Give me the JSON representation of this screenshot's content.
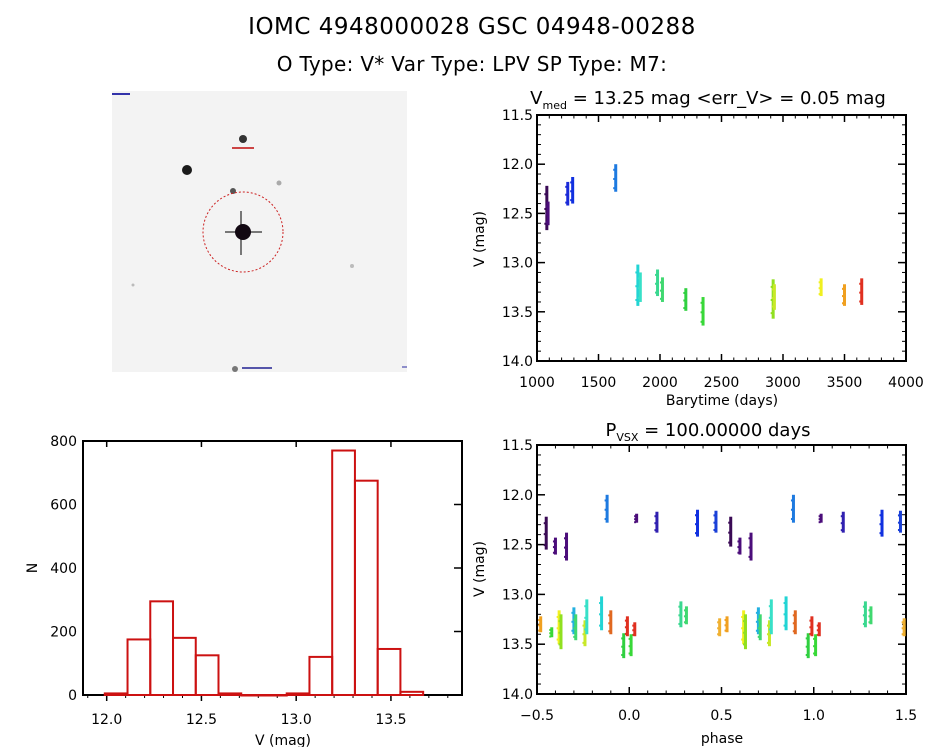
{
  "header": {
    "title": "IOMC 4948000028    GSC 04948-00288",
    "subtitle": "O Type: V*   Var Type: LPV   SP Type: M7:"
  },
  "finder": {
    "description": "DSS finder chart with target circled",
    "target_label": "target",
    "colors": {
      "circle": "#cc2222",
      "stars": "#111111",
      "background": "#f3f3f3"
    }
  },
  "chart_data": [
    {
      "id": "light-curve",
      "type": "scatter",
      "title_main": "V",
      "title_sub": "med",
      "title_rest": " = 13.25 mag <err_V> = 0.05 mag",
      "xlabel": "Barytime (days)",
      "ylabel": "V (mag)",
      "xlim": [
        1000,
        4000
      ],
      "ylim": [
        14.0,
        11.5
      ],
      "y_inverted": true,
      "xticks": [
        1000,
        1500,
        2000,
        2500,
        3000,
        3500,
        4000
      ],
      "yticks": [
        11.5,
        12.0,
        12.5,
        13.0,
        13.5,
        14.0
      ],
      "ytick_labels": [
        "11.5",
        "12.0",
        "12.5",
        "13.0",
        "13.5",
        "14.0"
      ],
      "groups": [
        {
          "x": 1080,
          "vmin": 12.22,
          "vmax": 12.67,
          "color": "#3a0a55"
        },
        {
          "x": 1090,
          "vmin": 12.38,
          "vmax": 12.62,
          "color": "#4b0d7a"
        },
        {
          "x": 1250,
          "vmin": 12.18,
          "vmax": 12.42,
          "color": "#1a2ad8"
        },
        {
          "x": 1290,
          "vmin": 12.13,
          "vmax": 12.4,
          "color": "#1030e0"
        },
        {
          "x": 1640,
          "vmin": 12.0,
          "vmax": 12.28,
          "color": "#1e7ae0"
        },
        {
          "x": 1820,
          "vmin": 13.02,
          "vmax": 13.44,
          "color": "#22d4d4"
        },
        {
          "x": 1840,
          "vmin": 13.1,
          "vmax": 13.4,
          "color": "#38e0c8"
        },
        {
          "x": 1980,
          "vmin": 13.07,
          "vmax": 13.34,
          "color": "#3ad890"
        },
        {
          "x": 2020,
          "vmin": 13.15,
          "vmax": 13.4,
          "color": "#40d870"
        },
        {
          "x": 2210,
          "vmin": 13.26,
          "vmax": 13.49,
          "color": "#30d040"
        },
        {
          "x": 2350,
          "vmin": 13.35,
          "vmax": 13.64,
          "color": "#38d838"
        },
        {
          "x": 2920,
          "vmin": 13.17,
          "vmax": 13.57,
          "color": "#90e020"
        },
        {
          "x": 2930,
          "vmin": 13.22,
          "vmax": 13.48,
          "color": "#c8e828"
        },
        {
          "x": 3310,
          "vmin": 13.16,
          "vmax": 13.34,
          "color": "#f0f020"
        },
        {
          "x": 3500,
          "vmin": 13.22,
          "vmax": 13.44,
          "color": "#f0a020"
        },
        {
          "x": 3640,
          "vmin": 13.16,
          "vmax": 13.43,
          "color": "#e03020"
        }
      ]
    },
    {
      "id": "histogram",
      "type": "bar",
      "title": "",
      "xlabel": "V (mag)",
      "ylabel": "N",
      "xlim": [
        11.875,
        13.875
      ],
      "ylim": [
        0,
        800
      ],
      "xticks": [
        12.0,
        12.5,
        13.0,
        13.5
      ],
      "xtick_labels": [
        "12.0",
        "12.5",
        "13.0",
        "13.5"
      ],
      "yticks": [
        0,
        200,
        400,
        600,
        800
      ],
      "ytick_labels": [
        "0",
        "200",
        "400",
        "600",
        "800"
      ],
      "bin_edges": [
        11.99,
        12.11,
        12.23,
        12.35,
        12.47,
        12.59,
        12.71,
        12.83,
        12.95,
        13.07,
        13.19,
        13.31,
        13.43,
        13.55,
        13.67
      ],
      "values": [
        5,
        175,
        295,
        180,
        125,
        5,
        0,
        0,
        5,
        120,
        770,
        675,
        145,
        10
      ],
      "bar_color": "#cc1111"
    },
    {
      "id": "phase-curve",
      "type": "scatter",
      "title_main": "P",
      "title_sub": "VSX",
      "title_rest": " = 100.00000 days",
      "xlabel": "phase",
      "ylabel": "V (mag)",
      "xlim": [
        -0.5,
        1.5
      ],
      "ylim": [
        14.0,
        11.5
      ],
      "y_inverted": true,
      "xticks": [
        -0.5,
        0.0,
        0.5,
        1.0,
        1.5
      ],
      "xtick_labels": [
        "−0.5",
        "0.0",
        "0.5",
        "1.0",
        "1.5"
      ],
      "yticks": [
        11.5,
        12.0,
        12.5,
        13.0,
        13.5,
        14.0
      ],
      "ytick_labels": [
        "11.5",
        "12.0",
        "12.5",
        "13.0",
        "13.5",
        "14.0"
      ],
      "groups": [
        {
          "x": -0.45,
          "vmin": 12.22,
          "vmax": 12.55,
          "color": "#3a0a55"
        },
        {
          "x": -0.4,
          "vmin": 12.43,
          "vmax": 12.6,
          "color": "#4b0d7a"
        },
        {
          "x": -0.34,
          "vmin": 12.38,
          "vmax": 12.66,
          "color": "#4b0d7a"
        },
        {
          "x": -0.12,
          "vmin": 12.0,
          "vmax": 12.28,
          "color": "#1e7ae0"
        },
        {
          "x": 0.04,
          "vmin": 12.19,
          "vmax": 12.28,
          "color": "#4b0d7a"
        },
        {
          "x": 0.15,
          "vmin": 12.17,
          "vmax": 12.38,
          "color": "#3020b0"
        },
        {
          "x": 0.37,
          "vmin": 12.15,
          "vmax": 12.42,
          "color": "#1030e0"
        },
        {
          "x": 0.47,
          "vmin": 12.16,
          "vmax": 12.38,
          "color": "#1a40d8"
        },
        {
          "x": 0.55,
          "vmin": 12.22,
          "vmax": 12.52,
          "color": "#3a0a55"
        },
        {
          "x": 0.6,
          "vmin": 12.43,
          "vmax": 12.6,
          "color": "#4b0d7a"
        },
        {
          "x": 0.66,
          "vmin": 12.38,
          "vmax": 12.66,
          "color": "#4b0d7a"
        },
        {
          "x": 0.89,
          "vmin": 12.0,
          "vmax": 12.28,
          "color": "#1e7ae0"
        },
        {
          "x": 1.04,
          "vmin": 12.19,
          "vmax": 12.28,
          "color": "#4b0d7a"
        },
        {
          "x": 1.16,
          "vmin": 12.17,
          "vmax": 12.38,
          "color": "#3020b0"
        },
        {
          "x": 1.37,
          "vmin": 12.15,
          "vmax": 12.42,
          "color": "#1030e0"
        },
        {
          "x": 1.47,
          "vmin": 12.16,
          "vmax": 12.38,
          "color": "#1a40d8"
        },
        {
          "x": -0.48,
          "vmin": 13.22,
          "vmax": 13.38,
          "color": "#f0a020"
        },
        {
          "x": -0.42,
          "vmin": 13.33,
          "vmax": 13.43,
          "color": "#38d838"
        },
        {
          "x": -0.38,
          "vmin": 13.16,
          "vmax": 13.5,
          "color": "#f0f020"
        },
        {
          "x": -0.37,
          "vmin": 13.2,
          "vmax": 13.55,
          "color": "#90e020"
        },
        {
          "x": -0.3,
          "vmin": 13.13,
          "vmax": 13.4,
          "color": "#22b0e0"
        },
        {
          "x": -0.29,
          "vmin": 13.2,
          "vmax": 13.46,
          "color": "#40d870"
        },
        {
          "x": -0.24,
          "vmin": 13.26,
          "vmax": 13.52,
          "color": "#c8e828"
        },
        {
          "x": -0.23,
          "vmin": 13.05,
          "vmax": 13.4,
          "color": "#38e0c8"
        },
        {
          "x": -0.15,
          "vmin": 13.02,
          "vmax": 13.36,
          "color": "#22d4d4"
        },
        {
          "x": -0.1,
          "vmin": 13.16,
          "vmax": 13.4,
          "color": "#e06820"
        },
        {
          "x": -0.03,
          "vmin": 13.39,
          "vmax": 13.64,
          "color": "#30d040"
        },
        {
          "x": -0.01,
          "vmin": 13.22,
          "vmax": 13.42,
          "color": "#e03020"
        },
        {
          "x": 0.03,
          "vmin": 13.28,
          "vmax": 13.42,
          "color": "#e03020"
        },
        {
          "x": 0.01,
          "vmin": 13.4,
          "vmax": 13.62,
          "color": "#38d838"
        },
        {
          "x": 0.28,
          "vmin": 13.07,
          "vmax": 13.33,
          "color": "#3ad890"
        },
        {
          "x": 0.31,
          "vmin": 13.12,
          "vmax": 13.3,
          "color": "#40d870"
        },
        {
          "x": 0.49,
          "vmin": 13.24,
          "vmax": 13.42,
          "color": "#f0b030"
        },
        {
          "x": 0.53,
          "vmin": 13.22,
          "vmax": 13.38,
          "color": "#f0a020"
        },
        {
          "x": 0.62,
          "vmin": 13.16,
          "vmax": 13.5,
          "color": "#f0f020"
        },
        {
          "x": 0.63,
          "vmin": 13.2,
          "vmax": 13.55,
          "color": "#90e020"
        },
        {
          "x": 0.7,
          "vmin": 13.13,
          "vmax": 13.4,
          "color": "#22b0e0"
        },
        {
          "x": 0.71,
          "vmin": 13.2,
          "vmax": 13.46,
          "color": "#40d870"
        },
        {
          "x": 0.76,
          "vmin": 13.26,
          "vmax": 13.52,
          "color": "#c8e828"
        },
        {
          "x": 0.77,
          "vmin": 13.05,
          "vmax": 13.4,
          "color": "#38e0c8"
        },
        {
          "x": 0.85,
          "vmin": 13.02,
          "vmax": 13.36,
          "color": "#22d4d4"
        },
        {
          "x": 0.9,
          "vmin": 13.16,
          "vmax": 13.4,
          "color": "#e06820"
        },
        {
          "x": 0.97,
          "vmin": 13.39,
          "vmax": 13.64,
          "color": "#30d040"
        },
        {
          "x": 0.99,
          "vmin": 13.22,
          "vmax": 13.42,
          "color": "#e03020"
        },
        {
          "x": 1.03,
          "vmin": 13.28,
          "vmax": 13.42,
          "color": "#e03020"
        },
        {
          "x": 1.01,
          "vmin": 13.4,
          "vmax": 13.62,
          "color": "#38d838"
        },
        {
          "x": 1.28,
          "vmin": 13.07,
          "vmax": 13.33,
          "color": "#3ad890"
        },
        {
          "x": 1.31,
          "vmin": 13.12,
          "vmax": 13.3,
          "color": "#40d870"
        },
        {
          "x": 1.49,
          "vmin": 13.24,
          "vmax": 13.42,
          "color": "#f0b030"
        }
      ]
    }
  ]
}
